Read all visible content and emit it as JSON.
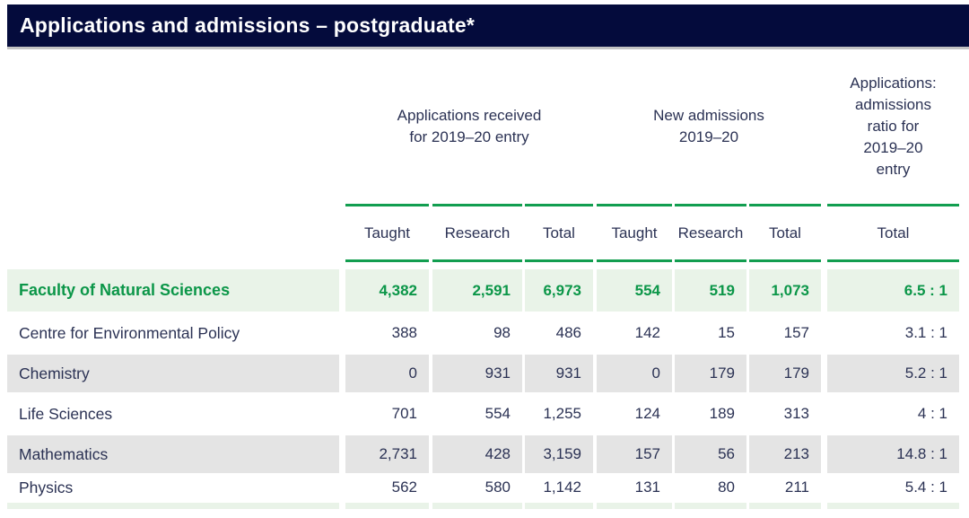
{
  "title": "Applications and admissions – postgraduate*",
  "colors": {
    "titlebar_bg": "#040b3c",
    "accent_green": "#129e50",
    "highlight_row_bg": "#e9f3e8",
    "highlight_row_text": "#0b9648",
    "zebra_gray_bg": "#e4e4e4",
    "body_text": "#2b3254"
  },
  "table": {
    "groups": [
      {
        "label": "Applications received\nfor 2019–20 entry"
      },
      {
        "label": "New admissions\n2019–20"
      },
      {
        "label": "Applications:\nadmissions\nratio for\n2019–20\nentry"
      }
    ],
    "columns": [
      "Taught",
      "Research",
      "Total",
      "Taught",
      "Research",
      "Total",
      "Total"
    ],
    "rows": [
      {
        "label": "Faculty of Natural Sciences",
        "values": [
          "4,382",
          "2,591",
          "6,973",
          "554",
          "519",
          "1,073",
          "6.5 : 1"
        ]
      },
      {
        "label": "Centre for Environmental Policy",
        "values": [
          "388",
          "98",
          "486",
          "142",
          "15",
          "157",
          "3.1 : 1"
        ]
      },
      {
        "label": "Chemistry",
        "values": [
          "0",
          "931",
          "931",
          "0",
          "179",
          "179",
          "5.2 : 1"
        ]
      },
      {
        "label": "Life Sciences",
        "values": [
          "701",
          "554",
          "1,255",
          "124",
          "189",
          "313",
          "4 : 1"
        ]
      },
      {
        "label": "Mathematics",
        "values": [
          "2,731",
          "428",
          "3,159",
          "157",
          "56",
          "213",
          "14.8 : 1"
        ]
      },
      {
        "label": "Physics",
        "values": [
          "562",
          "580",
          "1,142",
          "131",
          "80",
          "211",
          "5.4 : 1"
        ]
      }
    ]
  }
}
